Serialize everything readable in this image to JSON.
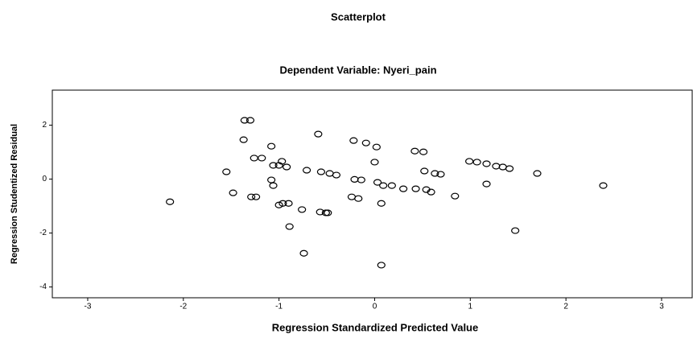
{
  "chart_data": {
    "type": "scatter",
    "title": "Scatterplot",
    "subtitle": "Dependent Variable: Nyeri_pain",
    "x_label": "Regression Standardized Predicted Value",
    "y_label": "Regression Studentized Residual",
    "xlim": [
      -3.37,
      3.32
    ],
    "ylim": [
      -4.4,
      3.3
    ],
    "xticks": [
      -3,
      -2,
      -1,
      0,
      1,
      2,
      3
    ],
    "yticks": [
      -4,
      -2,
      0,
      2
    ],
    "grid": false,
    "marker_color": "#000000",
    "x": [
      -2.14,
      -1.55,
      -1.48,
      -1.36,
      -1.3,
      -1.37,
      -1.26,
      -1.18,
      -1.29,
      -1.24,
      -1.08,
      -1.08,
      -0.97,
      -1.06,
      -1.0,
      -0.92,
      -1.06,
      -0.96,
      -0.9,
      -1.0,
      -0.76,
      -0.89,
      -0.71,
      -0.74,
      -0.59,
      -0.56,
      -0.47,
      -0.4,
      -0.57,
      -0.51,
      -0.49,
      -0.22,
      -0.09,
      -0.21,
      -0.14,
      -0.24,
      -0.17,
      0.02,
      0.0,
      0.03,
      0.09,
      0.18,
      0.07,
      0.07,
      0.3,
      0.43,
      0.54,
      0.42,
      0.51,
      0.52,
      0.59,
      0.63,
      0.69,
      0.84,
      0.99,
      1.07,
      1.17,
      1.27,
      1.34,
      1.41,
      1.17,
      1.47,
      1.7,
      2.39
    ],
    "y": [
      -0.84,
      0.27,
      -0.51,
      2.18,
      2.18,
      1.46,
      0.78,
      0.78,
      -0.66,
      -0.66,
      1.22,
      -0.03,
      0.66,
      0.51,
      0.51,
      0.45,
      -0.24,
      -0.9,
      -0.9,
      -0.96,
      -1.13,
      -1.76,
      0.33,
      -2.75,
      1.67,
      0.27,
      0.21,
      0.15,
      -1.22,
      -1.25,
      -1.25,
      1.43,
      1.34,
      -0.01,
      -0.03,
      -0.66,
      -0.72,
      1.19,
      0.63,
      -0.12,
      -0.24,
      -0.24,
      -0.9,
      -3.19,
      -0.36,
      -0.36,
      -0.39,
      1.04,
      1.01,
      0.3,
      -0.48,
      0.21,
      0.18,
      -0.63,
      0.66,
      0.63,
      0.57,
      0.48,
      0.45,
      0.39,
      -0.18,
      -1.91,
      0.21,
      -0.24
    ]
  }
}
